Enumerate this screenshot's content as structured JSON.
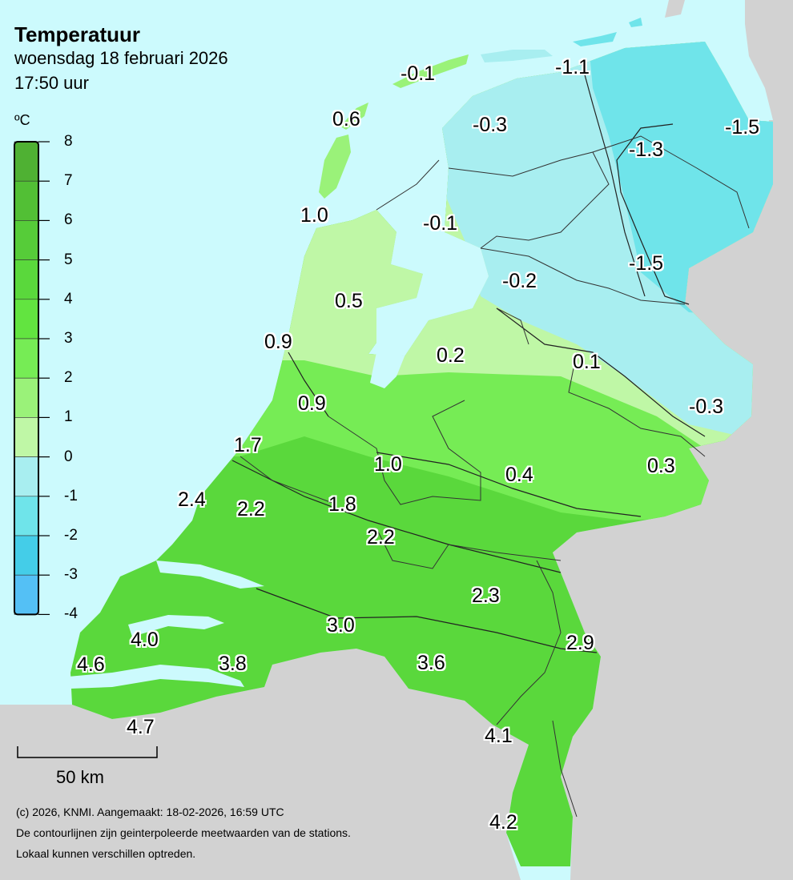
{
  "header": {
    "title": "Temperatuur",
    "date": "woensdag 18 februari 2026",
    "time": "17:50 uur"
  },
  "legend": {
    "unit": "ºC",
    "ticks": [
      "8",
      "7",
      "6",
      "5",
      "4",
      "3",
      "2",
      "1",
      "0",
      "-1",
      "-2",
      "-3",
      "-4"
    ],
    "colors": [
      "#4fb133",
      "#52bf35",
      "#56cc39",
      "#5ad83c",
      "#62e440",
      "#76ec55",
      "#9af279",
      "#bff7a6",
      "#a8eef0",
      "#6fe4ea",
      "#44cde8",
      "#54c0f5"
    ]
  },
  "map": {
    "land_colors": {
      "sea": "#ccfafd",
      "foreign": "#d2d2d2"
    },
    "labels": [
      {
        "t": "-0.1"
      },
      {
        "t": "-1.1"
      },
      {
        "t": "0.6"
      },
      {
        "t": "-0.3"
      },
      {
        "t": "-1.5"
      },
      {
        "t": "-1.3"
      },
      {
        "t": "1.0"
      },
      {
        "t": "-0.1"
      },
      {
        "t": "-1.5"
      },
      {
        "t": "-0.2"
      },
      {
        "t": "0.5"
      },
      {
        "t": "0.9"
      },
      {
        "t": "0.2"
      },
      {
        "t": "0.1"
      },
      {
        "t": "0.9"
      },
      {
        "t": "-0.3"
      },
      {
        "t": "1.7"
      },
      {
        "t": "1.0"
      },
      {
        "t": "0.4"
      },
      {
        "t": "0.3"
      },
      {
        "t": "2.4"
      },
      {
        "t": "2.2"
      },
      {
        "t": "1.8"
      },
      {
        "t": "2.2"
      },
      {
        "t": "2.3"
      },
      {
        "t": "3.0"
      },
      {
        "t": "2.9"
      },
      {
        "t": "4.0"
      },
      {
        "t": "4.6"
      },
      {
        "t": "3.8"
      },
      {
        "t": "3.6"
      },
      {
        "t": "4.7"
      },
      {
        "t": "4.1"
      },
      {
        "t": "4.2"
      }
    ]
  },
  "scale_bar": {
    "label": "50 km"
  },
  "footer": {
    "line1": "(c) 2026, KNMI. Aangemaakt: 18-02-2026, 16:59 UTC",
    "line2": "De contourlijnen zijn geinterpoleerde meetwaarden van de stations.",
    "line3": "Lokaal kunnen verschillen optreden."
  }
}
